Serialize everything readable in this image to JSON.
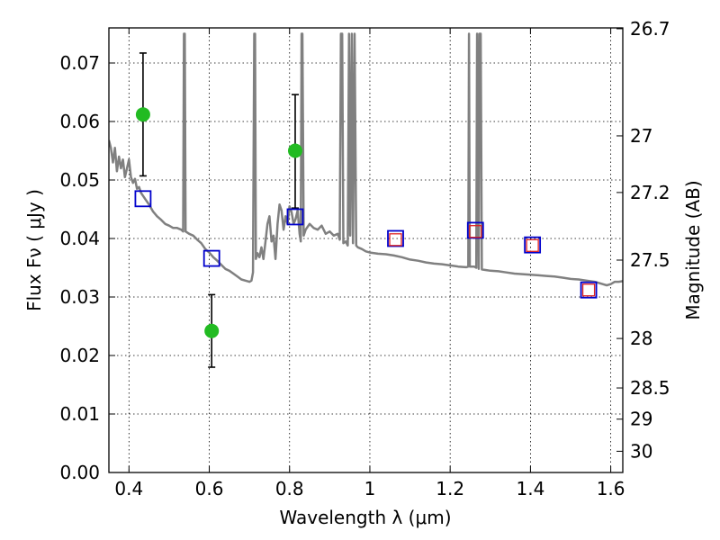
{
  "chart_data": {
    "type": "scatter",
    "title": "",
    "xlabel": "Wavelength  λ (μm)",
    "ylabel": "Flux  Fν  ( μJy )",
    "ylabel_right": "Magnitude (AB)",
    "xlim": [
      0.35,
      1.63
    ],
    "ylim": [
      0.0,
      0.076
    ],
    "grid": true,
    "x_ticks": [
      {
        "value": 0.4,
        "label": "0.4"
      },
      {
        "value": 0.6,
        "label": "0.6"
      },
      {
        "value": 0.8,
        "label": "0.8"
      },
      {
        "value": 1.0,
        "label": "1"
      },
      {
        "value": 1.2,
        "label": "1.2"
      },
      {
        "value": 1.4,
        "label": "1.4"
      },
      {
        "value": 1.6,
        "label": "1.6"
      }
    ],
    "y_ticks": [
      {
        "value": 0.0,
        "label": "0.00"
      },
      {
        "value": 0.01,
        "label": "0.01"
      },
      {
        "value": 0.02,
        "label": "0.02"
      },
      {
        "value": 0.03,
        "label": "0.03"
      },
      {
        "value": 0.04,
        "label": "0.04"
      },
      {
        "value": 0.05,
        "label": "0.05"
      },
      {
        "value": 0.06,
        "label": "0.06"
      },
      {
        "value": 0.07,
        "label": "0.07"
      }
    ],
    "magnitude_ticks": [
      {
        "mag": 26.7,
        "label": "26.7"
      },
      {
        "mag": 27.0,
        "label": "27"
      },
      {
        "mag": 27.2,
        "label": "27.2"
      },
      {
        "mag": 27.5,
        "label": "27.5"
      },
      {
        "mag": 28.0,
        "label": "28"
      },
      {
        "mag": 28.5,
        "label": "28.5"
      },
      {
        "mag": 29.0,
        "label": "29"
      },
      {
        "mag": 30.0,
        "label": "30"
      }
    ],
    "series": [
      {
        "marker": "line",
        "color": "#808080",
        "points": [
          [
            0.35,
            0.0568
          ],
          [
            0.355,
            0.0555
          ],
          [
            0.36,
            0.053
          ],
          [
            0.365,
            0.0555
          ],
          [
            0.37,
            0.0515
          ],
          [
            0.375,
            0.054
          ],
          [
            0.38,
            0.052
          ],
          [
            0.385,
            0.0535
          ],
          [
            0.39,
            0.0505
          ],
          [
            0.395,
            0.052
          ],
          [
            0.4,
            0.0535
          ],
          [
            0.405,
            0.0505
          ],
          [
            0.41,
            0.0495
          ],
          [
            0.415,
            0.0502
          ],
          [
            0.42,
            0.0485
          ],
          [
            0.425,
            0.0488
          ],
          [
            0.43,
            0.0478
          ],
          [
            0.44,
            0.0468
          ],
          [
            0.45,
            0.0458
          ],
          [
            0.46,
            0.0446
          ],
          [
            0.47,
            0.0438
          ],
          [
            0.48,
            0.0432
          ],
          [
            0.49,
            0.0425
          ],
          [
            0.5,
            0.0422
          ],
          [
            0.51,
            0.0418
          ],
          [
            0.52,
            0.0418
          ],
          [
            0.53,
            0.0415
          ],
          [
            0.535,
            0.0412
          ],
          [
            0.537,
            0.075
          ],
          [
            0.539,
            0.075
          ],
          [
            0.541,
            0.0412
          ],
          [
            0.55,
            0.0408
          ],
          [
            0.56,
            0.0405
          ],
          [
            0.57,
            0.0398
          ],
          [
            0.58,
            0.0392
          ],
          [
            0.59,
            0.0382
          ],
          [
            0.6,
            0.0376
          ],
          [
            0.61,
            0.0368
          ],
          [
            0.62,
            0.0362
          ],
          [
            0.63,
            0.0355
          ],
          [
            0.64,
            0.0348
          ],
          [
            0.65,
            0.0345
          ],
          [
            0.66,
            0.034
          ],
          [
            0.67,
            0.0335
          ],
          [
            0.68,
            0.033
          ],
          [
            0.69,
            0.0328
          ],
          [
            0.7,
            0.0326
          ],
          [
            0.705,
            0.0328
          ],
          [
            0.709,
            0.0342
          ],
          [
            0.712,
            0.075
          ],
          [
            0.714,
            0.075
          ],
          [
            0.716,
            0.0365
          ],
          [
            0.72,
            0.0375
          ],
          [
            0.725,
            0.0368
          ],
          [
            0.73,
            0.0385
          ],
          [
            0.735,
            0.0365
          ],
          [
            0.74,
            0.0395
          ],
          [
            0.745,
            0.0425
          ],
          [
            0.75,
            0.0438
          ],
          [
            0.755,
            0.0395
          ],
          [
            0.76,
            0.0405
          ],
          [
            0.765,
            0.0365
          ],
          [
            0.77,
            0.0425
          ],
          [
            0.775,
            0.0458
          ],
          [
            0.78,
            0.0448
          ],
          [
            0.785,
            0.0415
          ],
          [
            0.79,
            0.0438
          ],
          [
            0.795,
            0.0425
          ],
          [
            0.8,
            0.0455
          ],
          [
            0.805,
            0.0445
          ],
          [
            0.81,
            0.0425
          ],
          [
            0.815,
            0.0433
          ],
          [
            0.82,
            0.0448
          ],
          [
            0.825,
            0.0408
          ],
          [
            0.828,
            0.0395
          ],
          [
            0.83,
            0.075
          ],
          [
            0.832,
            0.075
          ],
          [
            0.835,
            0.0405
          ],
          [
            0.84,
            0.0415
          ],
          [
            0.85,
            0.0425
          ],
          [
            0.86,
            0.0418
          ],
          [
            0.87,
            0.0415
          ],
          [
            0.88,
            0.0422
          ],
          [
            0.89,
            0.0408
          ],
          [
            0.9,
            0.0412
          ],
          [
            0.91,
            0.0405
          ],
          [
            0.92,
            0.0408
          ],
          [
            0.925,
            0.0398
          ],
          [
            0.928,
            0.075
          ],
          [
            0.931,
            0.075
          ],
          [
            0.934,
            0.0392
          ],
          [
            0.94,
            0.0395
          ],
          [
            0.945,
            0.0388
          ],
          [
            0.948,
            0.075
          ],
          [
            0.951,
            0.0405
          ],
          [
            0.955,
            0.075
          ],
          [
            0.958,
            0.0392
          ],
          [
            0.962,
            0.075
          ],
          [
            0.966,
            0.0388
          ],
          [
            0.97,
            0.0385
          ],
          [
            0.98,
            0.0382
          ],
          [
            0.99,
            0.0378
          ],
          [
            1.0,
            0.0376
          ],
          [
            1.02,
            0.0374
          ],
          [
            1.04,
            0.0373
          ],
          [
            1.06,
            0.0371
          ],
          [
            1.08,
            0.0368
          ],
          [
            1.1,
            0.0364
          ],
          [
            1.12,
            0.0362
          ],
          [
            1.14,
            0.0359
          ],
          [
            1.16,
            0.0357
          ],
          [
            1.18,
            0.0356
          ],
          [
            1.2,
            0.0354
          ],
          [
            1.22,
            0.0352
          ],
          [
            1.24,
            0.0351
          ],
          [
            1.245,
            0.0352
          ],
          [
            1.247,
            0.075
          ],
          [
            1.249,
            0.0352
          ],
          [
            1.26,
            0.0352
          ],
          [
            1.265,
            0.035
          ],
          [
            1.267,
            0.075
          ],
          [
            1.271,
            0.0348
          ],
          [
            1.273,
            0.075
          ],
          [
            1.276,
            0.075
          ],
          [
            1.279,
            0.0347
          ],
          [
            1.29,
            0.0346
          ],
          [
            1.3,
            0.0345
          ],
          [
            1.32,
            0.0344
          ],
          [
            1.34,
            0.0342
          ],
          [
            1.36,
            0.034
          ],
          [
            1.38,
            0.0339
          ],
          [
            1.4,
            0.0338
          ],
          [
            1.42,
            0.0337
          ],
          [
            1.44,
            0.0336
          ],
          [
            1.46,
            0.0335
          ],
          [
            1.48,
            0.0333
          ],
          [
            1.5,
            0.0331
          ],
          [
            1.52,
            0.033
          ],
          [
            1.54,
            0.0328
          ],
          [
            1.56,
            0.0326
          ],
          [
            1.58,
            0.0322
          ],
          [
            1.59,
            0.032
          ],
          [
            1.6,
            0.0322
          ],
          [
            1.61,
            0.0326
          ],
          [
            1.62,
            0.0326
          ],
          [
            1.63,
            0.0327
          ]
        ]
      },
      {
        "marker": "circle",
        "color": "#22bb22",
        "points": [
          {
            "x": 0.435,
            "y": 0.0612,
            "yerr_low": 0.0507,
            "yerr_high": 0.0717
          },
          {
            "x": 0.606,
            "y": 0.0242,
            "yerr_low": 0.018,
            "yerr_high": 0.0304
          },
          {
            "x": 0.814,
            "y": 0.055,
            "yerr_low": 0.0452,
            "yerr_high": 0.0646
          }
        ]
      },
      {
        "marker": "square",
        "color": "#0000cc",
        "points": [
          {
            "x": 0.435,
            "y": 0.0468
          },
          {
            "x": 0.606,
            "y": 0.0366
          },
          {
            "x": 0.814,
            "y": 0.0437
          },
          {
            "x": 1.064,
            "y": 0.04
          },
          {
            "x": 1.263,
            "y": 0.0414
          },
          {
            "x": 1.405,
            "y": 0.0389
          },
          {
            "x": 1.545,
            "y": 0.0312
          }
        ]
      },
      {
        "marker": "square",
        "color": "#dd2222",
        "points": [
          {
            "x": 1.064,
            "y": 0.0398
          },
          {
            "x": 1.263,
            "y": 0.0412
          },
          {
            "x": 1.405,
            "y": 0.0388
          },
          {
            "x": 1.545,
            "y": 0.0312
          }
        ]
      }
    ]
  }
}
